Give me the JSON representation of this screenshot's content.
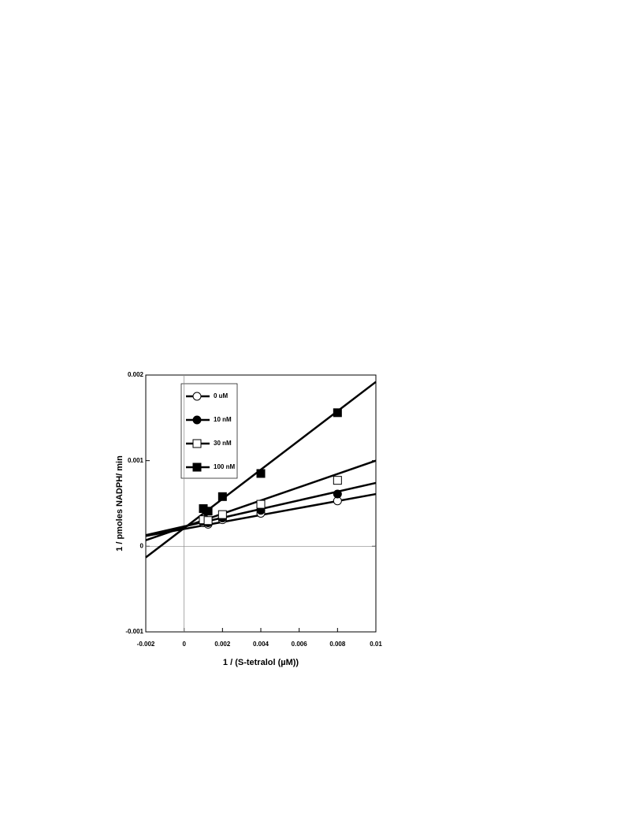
{
  "chart_data": {
    "type": "scatter",
    "xlabel": "1 / (S-tetralol (µM))",
    "ylabel": "1 / pmoles NADPH/ min",
    "x": [
      0.001,
      0.00125,
      0.002,
      0.004,
      0.008
    ],
    "fit_x": [
      -0.002,
      0.01
    ],
    "series": [
      {
        "name": "0 uM",
        "color": "#000000",
        "marker": "circle-open",
        "values": [
          0.000275,
          0.000257,
          0.00031,
          0.000385,
          0.00053
        ],
        "fit": [
          0.00012,
          0.00061
        ]
      },
      {
        "name": "10 nM",
        "color": "#000000",
        "marker": "circle-filled",
        "values": [
          0.00029,
          0.000275,
          0.00033,
          0.00042,
          0.00061
        ],
        "fit": [
          0.00013,
          0.00074
        ]
      },
      {
        "name": "30 nM",
        "color": "#000000",
        "marker": "square-open",
        "values": [
          0.00031,
          0.0003,
          0.00037,
          0.00049,
          0.00077
        ],
        "fit": [
          7e-05,
          0.001
        ]
      },
      {
        "name": "100 nM",
        "color": "#000000",
        "marker": "square-filled",
        "values": [
          0.00044,
          0.00041,
          0.00058,
          0.00085,
          0.00156
        ],
        "fit": [
          -0.00013,
          0.00192
        ]
      }
    ],
    "xlim": [
      -0.002,
      0.01
    ],
    "xticks": [
      -0.002,
      0,
      0.002,
      0.004,
      0.006,
      0.008,
      0.01
    ],
    "ylim": [
      -0.001,
      0.002
    ],
    "yticks": [
      -0.001,
      0,
      0.001,
      0.002
    ],
    "zero_lines": true
  }
}
